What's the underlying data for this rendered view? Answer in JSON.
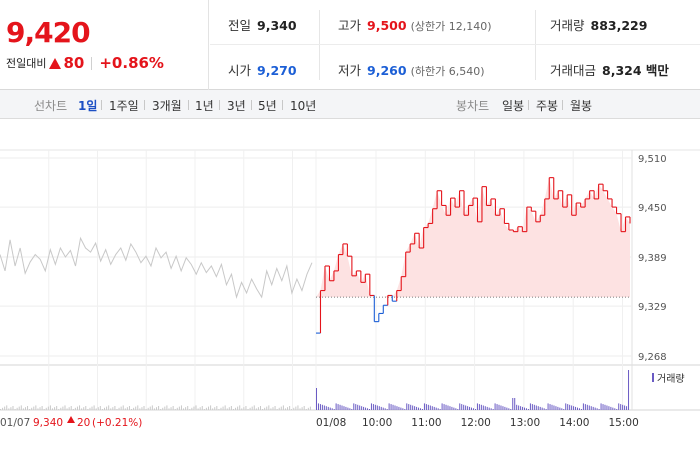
{
  "summary": {
    "price": "9,420",
    "change_label": "전일대비",
    "change_value": "80",
    "change_pct": "+0.86%",
    "prev_close_label": "전일",
    "prev_close": "9,340",
    "high_label": "고가",
    "high": "9,500",
    "upper_limit": "(상한가 12,140)",
    "volume_label": "거래량",
    "volume": "883,229",
    "open_label": "시가",
    "open": "9,270",
    "low_label": "저가",
    "low": "9,260",
    "lower_limit": "(하한가 6,540)",
    "trade_value_label": "거래대금",
    "trade_value": "8,324 백만"
  },
  "colors": {
    "up": "#e4141b",
    "down": "#1c5fd6",
    "prev_day_line": "#c8c8c8",
    "up_fill": "#fde2e2"
  },
  "tabs": {
    "line_title": "선차트",
    "line_tabs": [
      "1일",
      "1주일",
      "3개월",
      "1년",
      "3년",
      "5년",
      "10년"
    ],
    "line_active": "1일",
    "candle_title": "봉차트",
    "candle_tabs": [
      "일봉",
      "주봉",
      "월봉"
    ]
  },
  "chart_data": {
    "type": "line",
    "title": "",
    "xlabel": "",
    "ylabel": "",
    "y_ticks": [
      "9,510",
      "9,450",
      "9,389",
      "9,329",
      "9,268"
    ],
    "ylim": [
      9268,
      9510
    ],
    "reference_price": 9340,
    "x_tick_labels": [
      "01/08",
      "10:00",
      "11:00",
      "12:00",
      "13:00",
      "14:00",
      "15:00"
    ],
    "legend": "거래량",
    "prev_day_label": "01/07",
    "prev_day_close": "9,340",
    "prev_day_change": "20",
    "prev_day_change_pct": "(+0.21%)",
    "prev_day_series": {
      "name": "01/07",
      "values": [
        9392,
        9372,
        9410,
        9378,
        9400,
        9369,
        9383,
        9392,
        9386,
        9372,
        9398,
        9380,
        9400,
        9389,
        9397,
        9378,
        9412,
        9400,
        9395,
        9406,
        9384,
        9398,
        9380,
        9392,
        9400,
        9385,
        9405,
        9395,
        9382,
        9390,
        9378,
        9400,
        9388,
        9395,
        9375,
        9390,
        9372,
        9388,
        9380,
        9368,
        9382,
        9370,
        9378,
        9365,
        9380,
        9355,
        9368,
        9340,
        9358,
        9345,
        9362,
        9350,
        9340,
        9372,
        9355,
        9375,
        9360,
        9378,
        9345,
        9362,
        9348,
        9368,
        9382
      ]
    },
    "today_series": {
      "name": "01/08",
      "values": [
        9296,
        9348,
        9378,
        9360,
        9372,
        9392,
        9405,
        9390,
        9366,
        9372,
        9358,
        9368,
        9342,
        9310,
        9320,
        9330,
        9342,
        9335,
        9348,
        9365,
        9395,
        9405,
        9418,
        9400,
        9425,
        9430,
        9448,
        9470,
        9452,
        9440,
        9461,
        9450,
        9470,
        9440,
        9452,
        9461,
        9432,
        9475,
        9452,
        9460,
        9440,
        9448,
        9430,
        9422,
        9420,
        9426,
        9420,
        9450,
        9445,
        9432,
        9440,
        9460,
        9486,
        9460,
        9470,
        9450,
        9465,
        9440,
        9455,
        9450,
        9460,
        9470,
        9460,
        9478,
        9470,
        9460,
        9450,
        9442,
        9420,
        9438,
        9430
      ]
    }
  }
}
